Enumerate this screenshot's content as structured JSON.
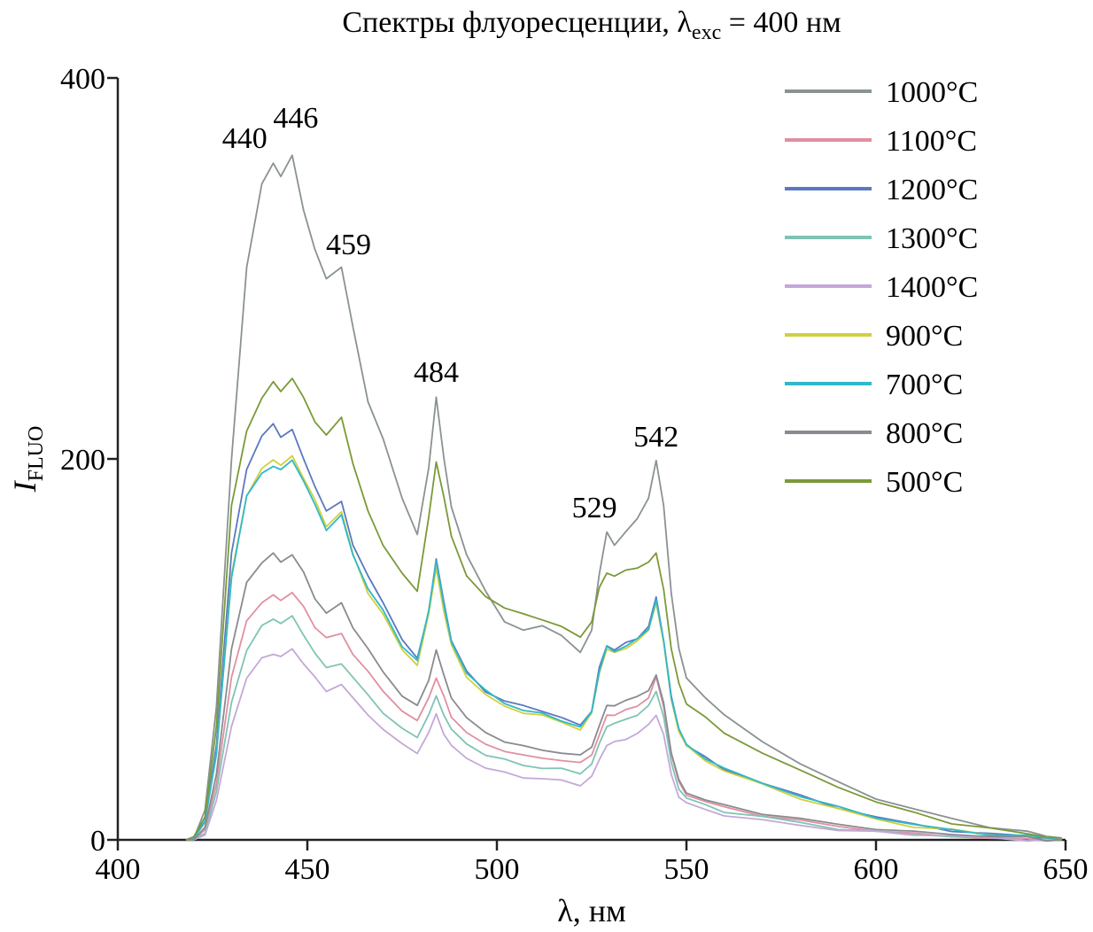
{
  "chart_data": {
    "type": "line",
    "title": {
      "main": "Спектры флуоресценции, λ",
      "sub": "exc",
      "rest": " = 400 нм"
    },
    "xlabel": "λ, нм",
    "ylabel": {
      "main": "I",
      "sub": "FLUO"
    },
    "xlim": [
      400,
      650
    ],
    "ylim": [
      0,
      400
    ],
    "x_ticks": [
      400,
      450,
      500,
      550,
      600,
      650
    ],
    "y_ticks": [
      0,
      200,
      400
    ],
    "grid": false,
    "legend_position": "top-right",
    "peak_labels": [
      {
        "text": "440",
        "x": 440,
        "y": 355
      },
      {
        "text": "446",
        "x": 446,
        "y": 360
      },
      {
        "text": "459",
        "x": 459,
        "y": 300
      },
      {
        "text": "484",
        "x": 484,
        "y": 233
      },
      {
        "text": "529",
        "x": 529,
        "y": 161
      },
      {
        "text": "542",
        "x": 542,
        "y": 199
      }
    ],
    "x": [
      418,
      420,
      423,
      426,
      430,
      434,
      438,
      441,
      443,
      446,
      449,
      452,
      455,
      459,
      462,
      466,
      470,
      475,
      479,
      482,
      484,
      486,
      488,
      492,
      497,
      502,
      507,
      512,
      517,
      522,
      525,
      527,
      529,
      531,
      534,
      537,
      540,
      542,
      544,
      546,
      548,
      550,
      555,
      560,
      570,
      580,
      590,
      600,
      610,
      620,
      630,
      640,
      645,
      649
    ],
    "series": [
      {
        "name": "1000°C",
        "color": "#8a9292",
        "values": [
          0,
          1,
          15,
          70,
          200,
          300,
          345,
          355,
          348,
          360,
          330,
          310,
          295,
          300,
          270,
          230,
          210,
          180,
          160,
          195,
          233,
          200,
          175,
          150,
          130,
          115,
          110,
          112,
          108,
          98,
          110,
          140,
          161,
          155,
          162,
          168,
          180,
          199,
          175,
          130,
          100,
          85,
          75,
          65,
          52,
          40,
          30,
          22,
          16,
          11,
          7,
          4,
          2,
          1
        ]
      },
      {
        "name": "1100°C",
        "color": "#e090a0",
        "values": [
          0,
          0,
          5,
          30,
          85,
          115,
          125,
          128,
          126,
          130,
          122,
          112,
          106,
          108,
          98,
          88,
          78,
          68,
          62,
          75,
          85,
          75,
          65,
          56,
          50,
          47,
          44,
          43,
          42,
          40,
          45,
          55,
          65,
          66,
          68,
          70,
          75,
          85,
          70,
          45,
          30,
          24,
          20,
          17,
          13,
          10,
          7,
          5,
          3,
          2,
          1,
          0,
          0,
          0
        ]
      },
      {
        "name": "1200°C",
        "color": "#5a78c0",
        "values": [
          0,
          1,
          10,
          50,
          150,
          195,
          212,
          218,
          212,
          215,
          200,
          186,
          172,
          178,
          155,
          138,
          125,
          105,
          95,
          120,
          147,
          125,
          105,
          88,
          78,
          73,
          70,
          68,
          64,
          60,
          68,
          90,
          102,
          100,
          103,
          106,
          112,
          127,
          105,
          75,
          58,
          50,
          43,
          37,
          30,
          23,
          17,
          12,
          8,
          5,
          3,
          2,
          1,
          0
        ]
      },
      {
        "name": "1300°C",
        "color": "#7ec4b4",
        "values": [
          0,
          0,
          4,
          25,
          72,
          100,
          112,
          116,
          114,
          117,
          108,
          98,
          90,
          93,
          85,
          76,
          67,
          58,
          54,
          66,
          75,
          66,
          58,
          50,
          45,
          42,
          39,
          38,
          37,
          35,
          40,
          50,
          60,
          61,
          63,
          66,
          70,
          78,
          65,
          40,
          27,
          22,
          18,
          15,
          12,
          9,
          6,
          4,
          3,
          2,
          1,
          0,
          0,
          0
        ]
      },
      {
        "name": "1400°C",
        "color": "#c4a8d8",
        "values": [
          0,
          0,
          3,
          20,
          60,
          85,
          95,
          98,
          96,
          100,
          93,
          85,
          78,
          82,
          74,
          66,
          58,
          50,
          46,
          56,
          66,
          56,
          49,
          43,
          38,
          35,
          33,
          32,
          31,
          29,
          33,
          42,
          50,
          51,
          53,
          56,
          60,
          66,
          55,
          34,
          23,
          19,
          16,
          13,
          10,
          8,
          5,
          4,
          3,
          2,
          1,
          0,
          0,
          0
        ]
      },
      {
        "name": "900°C",
        "color": "#d0d040",
        "values": [
          0,
          1,
          9,
          45,
          140,
          180,
          195,
          200,
          196,
          202,
          190,
          178,
          165,
          172,
          150,
          130,
          118,
          100,
          92,
          118,
          143,
          120,
          102,
          86,
          76,
          70,
          67,
          65,
          62,
          58,
          66,
          88,
          100,
          98,
          101,
          104,
          110,
          125,
          103,
          74,
          57,
          49,
          42,
          36,
          29,
          22,
          16,
          11,
          7,
          5,
          3,
          2,
          1,
          0
        ]
      },
      {
        "name": "700°C",
        "color": "#30b8c8",
        "values": [
          0,
          1,
          9,
          45,
          138,
          180,
          193,
          196,
          194,
          200,
          188,
          176,
          163,
          170,
          150,
          132,
          120,
          102,
          94,
          120,
          147,
          123,
          104,
          88,
          78,
          72,
          68,
          66,
          63,
          59,
          67,
          89,
          101,
          99,
          102,
          105,
          111,
          126,
          104,
          75,
          58,
          50,
          43,
          37,
          30,
          23,
          17,
          12,
          8,
          5,
          3,
          2,
          1,
          0
        ]
      },
      {
        "name": "800°C",
        "color": "#8a8a92",
        "values": [
          0,
          0,
          6,
          35,
          100,
          135,
          146,
          150,
          146,
          150,
          140,
          127,
          119,
          124,
          112,
          100,
          88,
          76,
          70,
          84,
          100,
          86,
          75,
          64,
          56,
          52,
          49,
          47,
          46,
          44,
          49,
          60,
          70,
          71,
          73,
          75,
          79,
          86,
          72,
          46,
          31,
          25,
          21,
          18,
          14,
          11,
          8,
          6,
          4,
          3,
          2,
          1,
          0,
          0
        ]
      },
      {
        "name": "500°C",
        "color": "#7a9a38",
        "values": [
          0,
          1,
          12,
          60,
          175,
          215,
          232,
          240,
          236,
          242,
          232,
          220,
          212,
          222,
          198,
          172,
          155,
          140,
          130,
          170,
          198,
          180,
          160,
          138,
          128,
          122,
          118,
          116,
          112,
          106,
          115,
          132,
          140,
          139,
          141,
          143,
          146,
          150,
          132,
          100,
          82,
          72,
          64,
          56,
          46,
          36,
          28,
          20,
          14,
          9,
          6,
          3,
          2,
          1
        ]
      }
    ]
  }
}
